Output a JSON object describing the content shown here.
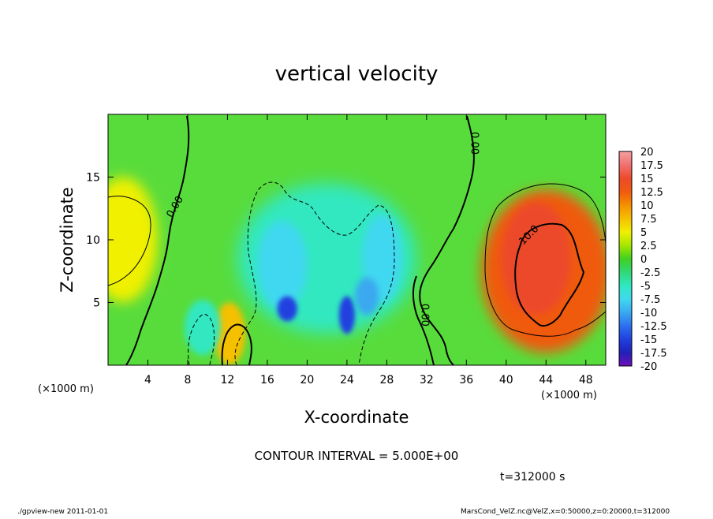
{
  "chart_data": {
    "type": "heatmap",
    "title": "vertical velocity",
    "xlabel": "X-coordinate",
    "ylabel": "Z-coordinate",
    "x_unit_label": "(×1000 m)",
    "y_unit_label": "(×1000 m)",
    "xlim": [
      0,
      50
    ],
    "ylim": [
      0,
      20
    ],
    "x_ticks": [
      4,
      8,
      12,
      16,
      20,
      24,
      28,
      32,
      36,
      40,
      44,
      48
    ],
    "y_ticks": [
      5,
      10,
      15
    ],
    "contour_interval_text": "CONTOUR INTERVAL = 5.000E+00",
    "time_text": "t=312000 s",
    "contour_labels": [
      {
        "text": "0.00",
        "x": 7,
        "z": 12.5,
        "angle": -60
      },
      {
        "text": "0.00",
        "x": 36.5,
        "z": 17.7,
        "angle": 90
      },
      {
        "text": "0.00",
        "x": 31.5,
        "z": 4.0,
        "angle": 90
      },
      {
        "text": "10.0",
        "x": 42.5,
        "z": 10.2,
        "angle": -45
      }
    ],
    "colorbar": {
      "labels": [
        "20",
        "17.5",
        "15",
        "12.5",
        "10",
        "7.5",
        "5",
        "2.5",
        "0",
        "-2.5",
        "-5",
        "-7.5",
        "-10",
        "-12.5",
        "-15",
        "-17.5",
        "-20"
      ],
      "colors": [
        "#f5a0a0",
        "#f07070",
        "#ec4a2a",
        "#f05a10",
        "#f59000",
        "#f5c000",
        "#f0f000",
        "#a5e600",
        "#40d020",
        "#30d878",
        "#30e8c0",
        "#40d8f0",
        "#3aa8f0",
        "#2d6ff0",
        "#2040e0",
        "#2020b8",
        "#7010b8"
      ]
    },
    "blobs": [
      {
        "x": 44,
        "z": 7.5,
        "rx": 6.5,
        "rz": 6.5,
        "value": 12.5,
        "blur": 8
      },
      {
        "x": 43,
        "z": 8.5,
        "rx": 3.5,
        "rz": 4.5,
        "value": 15,
        "blur": 5
      },
      {
        "x": 1.5,
        "z": 10,
        "rx": 3.5,
        "rz": 5,
        "value": 6,
        "blur": 8
      },
      {
        "x": 12.2,
        "z": 2.5,
        "rx": 1.6,
        "rz": 2.5,
        "value": 8,
        "blur": 4
      },
      {
        "x": 22,
        "z": 8.5,
        "rx": 9,
        "rz": 6,
        "value": -5,
        "blur": 10
      },
      {
        "x": 17.5,
        "z": 8,
        "rx": 2.5,
        "rz": 3.5,
        "value": -8,
        "blur": 5
      },
      {
        "x": 27.5,
        "z": 8.5,
        "rx": 2,
        "rz": 3.5,
        "value": -8,
        "blur": 5
      },
      {
        "x": 9.5,
        "z": 3,
        "rx": 1.8,
        "rz": 2.2,
        "value": -5,
        "blur": 4
      },
      {
        "x": 18,
        "z": 4.5,
        "rx": 1,
        "rz": 1,
        "value": -14,
        "blur": 3
      },
      {
        "x": 24,
        "z": 4,
        "rx": 0.8,
        "rz": 1.5,
        "value": -14,
        "blur": 3
      },
      {
        "x": 26,
        "z": 5.5,
        "rx": 1.2,
        "rz": 1.5,
        "value": -9,
        "blur": 4
      }
    ]
  },
  "footer": {
    "left": "./gpview-new 2011-01-01",
    "right": "MarsCond_VelZ.nc@VelZ,x=0:50000,z=0:20000,t=312000"
  }
}
